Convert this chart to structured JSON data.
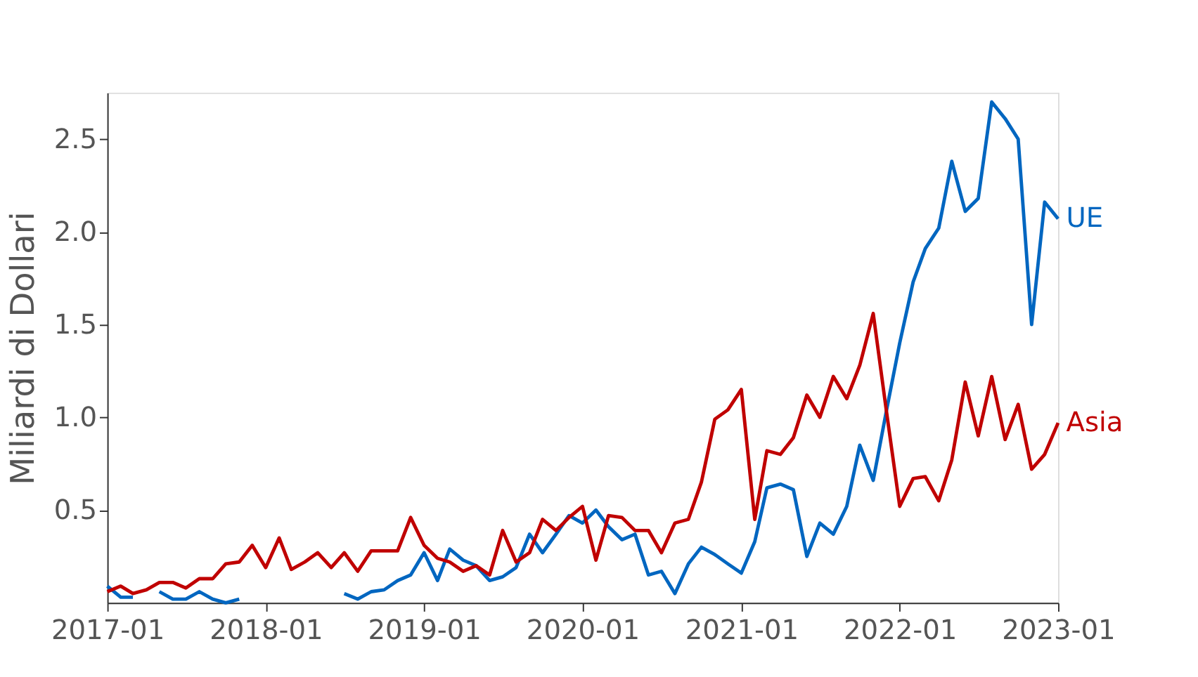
{
  "chart_data": {
    "type": "line",
    "ylabel": "Miliardi di Dollari",
    "x": [
      "2017-01",
      "2017-02",
      "2017-03",
      "2017-04",
      "2017-05",
      "2017-06",
      "2017-07",
      "2017-08",
      "2017-09",
      "2017-10",
      "2017-11",
      "2017-12",
      "2018-01",
      "2018-02",
      "2018-03",
      "2018-04",
      "2018-05",
      "2018-06",
      "2018-07",
      "2018-08",
      "2018-09",
      "2018-10",
      "2018-11",
      "2018-12",
      "2019-01",
      "2019-02",
      "2019-03",
      "2019-04",
      "2019-05",
      "2019-06",
      "2019-07",
      "2019-08",
      "2019-09",
      "2019-10",
      "2019-11",
      "2019-12",
      "2020-01",
      "2020-02",
      "2020-03",
      "2020-04",
      "2020-05",
      "2020-06",
      "2020-07",
      "2020-08",
      "2020-09",
      "2020-10",
      "2020-11",
      "2020-12",
      "2021-01",
      "2021-02",
      "2021-03",
      "2021-04",
      "2021-05",
      "2021-06",
      "2021-07",
      "2021-08",
      "2021-09",
      "2021-10",
      "2021-11",
      "2021-12",
      "2022-01",
      "2022-02",
      "2022-03",
      "2022-04",
      "2022-05",
      "2022-06",
      "2022-07",
      "2022-08",
      "2022-09",
      "2022-10",
      "2022-11",
      "2022-12",
      "2023-01"
    ],
    "series": [
      {
        "name": "UE",
        "color": "#0066c0",
        "values": [
          0.09,
          0.03,
          0.03,
          null,
          0.06,
          0.02,
          0.02,
          0.06,
          0.02,
          0.0,
          0.02,
          null,
          null,
          null,
          null,
          null,
          null,
          null,
          0.05,
          0.02,
          0.06,
          0.07,
          0.12,
          0.15,
          0.27,
          0.12,
          0.29,
          0.23,
          0.2,
          0.12,
          0.14,
          0.19,
          0.37,
          0.27,
          0.37,
          0.47,
          0.43,
          0.5,
          0.41,
          0.34,
          0.37,
          0.15,
          0.17,
          0.05,
          0.21,
          0.3,
          0.26,
          0.21,
          0.16,
          0.33,
          0.62,
          0.64,
          0.61,
          0.25,
          0.43,
          0.37,
          0.52,
          0.85,
          0.66,
          1.03,
          1.4,
          1.73,
          1.91,
          2.02,
          2.38,
          2.11,
          2.18,
          2.7,
          2.61,
          2.5,
          1.5,
          2.16,
          2.07
        ]
      },
      {
        "name": "Asia",
        "color": "#c00000",
        "values": [
          0.06,
          0.09,
          0.05,
          0.07,
          0.11,
          0.11,
          0.08,
          0.13,
          0.13,
          0.21,
          0.22,
          0.31,
          0.19,
          0.35,
          0.18,
          0.22,
          0.27,
          0.19,
          0.27,
          0.17,
          0.28,
          0.28,
          0.28,
          0.46,
          0.31,
          0.24,
          0.22,
          0.17,
          0.2,
          0.15,
          0.39,
          0.22,
          0.27,
          0.45,
          0.39,
          0.46,
          0.52,
          0.23,
          0.47,
          0.46,
          0.39,
          0.39,
          0.27,
          0.43,
          0.45,
          0.65,
          0.99,
          1.04,
          1.15,
          0.45,
          0.82,
          0.8,
          0.89,
          1.12,
          1.0,
          1.22,
          1.1,
          1.28,
          1.56,
          1.04,
          0.52,
          0.67,
          0.68,
          0.55,
          0.77,
          1.19,
          0.9,
          1.22,
          0.88,
          1.07,
          0.72,
          0.8,
          0.97
        ]
      }
    ],
    "xlim": [
      "2017-01",
      "2023-01"
    ],
    "xticks": [
      "2017-01",
      "2018-01",
      "2019-01",
      "2020-01",
      "2021-01",
      "2022-01",
      "2023-01"
    ],
    "ylim": [
      0,
      2.75
    ],
    "yticks": [
      {
        "value": 0.5,
        "label": "0.5"
      },
      {
        "value": 1.0,
        "label": "1.0"
      },
      {
        "value": 1.5,
        "label": "1.5"
      },
      {
        "value": 2.0,
        "label": "2.0"
      },
      {
        "value": 2.5,
        "label": "2.5"
      }
    ],
    "grid": false,
    "legend": false,
    "line_style": "solid",
    "marker": "none"
  }
}
